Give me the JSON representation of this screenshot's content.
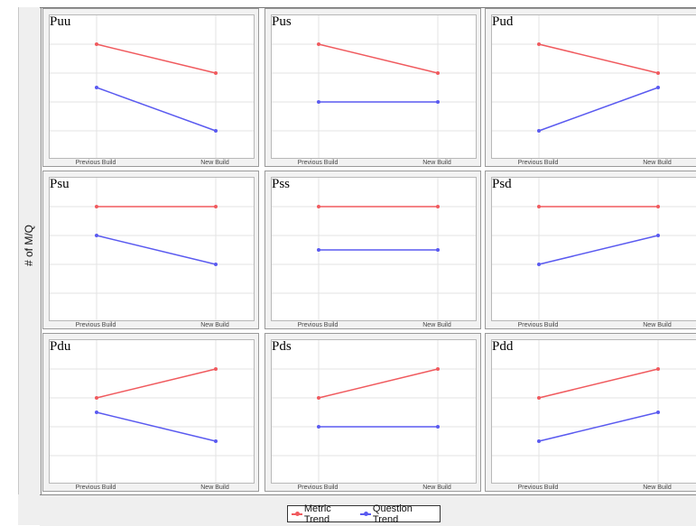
{
  "colors": {
    "metric": "#f05a5e",
    "question": "#5a5af0",
    "gridline": "#e3e3e3"
  },
  "chart_data": {
    "type": "line",
    "ylabel": "# of M/Q",
    "xlabel": "",
    "categories": [
      "Previous Build",
      "New Build"
    ],
    "ylim": [
      0,
      5
    ],
    "legend": {
      "placement": "bottom-center",
      "entries": [
        "Metric Trend",
        "Question Trend"
      ]
    },
    "panels": [
      {
        "title": "Puu",
        "series": [
          {
            "name": "Metric Trend",
            "values": [
              4,
              3
            ]
          },
          {
            "name": "Question Trend",
            "values": [
              2.5,
              1
            ]
          }
        ]
      },
      {
        "title": "Pus",
        "series": [
          {
            "name": "Metric Trend",
            "values": [
              4,
              3
            ]
          },
          {
            "name": "Question Trend",
            "values": [
              2,
              2
            ]
          }
        ]
      },
      {
        "title": "Pud",
        "series": [
          {
            "name": "Metric Trend",
            "values": [
              4,
              3
            ]
          },
          {
            "name": "Question Trend",
            "values": [
              1,
              2.5
            ]
          }
        ]
      },
      {
        "title": "Psu",
        "series": [
          {
            "name": "Metric Trend",
            "values": [
              4,
              4
            ]
          },
          {
            "name": "Question Trend",
            "values": [
              3,
              2
            ]
          }
        ]
      },
      {
        "title": "Pss",
        "series": [
          {
            "name": "Metric Trend",
            "values": [
              4,
              4
            ]
          },
          {
            "name": "Question Trend",
            "values": [
              2.5,
              2.5
            ]
          }
        ]
      },
      {
        "title": "Psd",
        "series": [
          {
            "name": "Metric Trend",
            "values": [
              4,
              4
            ]
          },
          {
            "name": "Question Trend",
            "values": [
              2,
              3
            ]
          }
        ]
      },
      {
        "title": "Pdu",
        "series": [
          {
            "name": "Metric Trend",
            "values": [
              3,
              4
            ]
          },
          {
            "name": "Question Trend",
            "values": [
              2.5,
              1.5
            ]
          }
        ]
      },
      {
        "title": "Pds",
        "series": [
          {
            "name": "Metric Trend",
            "values": [
              3,
              4
            ]
          },
          {
            "name": "Question Trend",
            "values": [
              2,
              2
            ]
          }
        ]
      },
      {
        "title": "Pdd",
        "series": [
          {
            "name": "Metric Trend",
            "values": [
              3,
              4
            ]
          },
          {
            "name": "Question Trend",
            "values": [
              1.5,
              2.5
            ]
          }
        ]
      }
    ]
  }
}
